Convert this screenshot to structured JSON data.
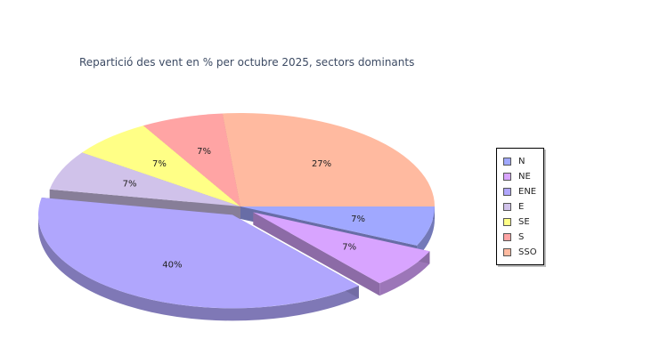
{
  "title": "Repartició des vent en % per octubre 2025, sectors dominants",
  "chart_data": {
    "type": "pie",
    "title": "Repartició des vent en % per octubre 2025, sectors dominants",
    "categories": [
      "N",
      "NE",
      "ENE",
      "E",
      "SE",
      "S",
      "SSO"
    ],
    "values": [
      7,
      7,
      40,
      7,
      7,
      7,
      27
    ],
    "labels": [
      "7%",
      "7%",
      "40%",
      "7%",
      "7%",
      "7%",
      "27%"
    ],
    "colors": [
      "#a0a8ff",
      "#d8a4ff",
      "#b0a6fd",
      "#d0c2ea",
      "#ffff86",
      "#ffa4a4",
      "#ffbaa0"
    ],
    "legend_position": "right",
    "exploded": [
      "NE",
      "ENE"
    ],
    "style": "3d"
  }
}
